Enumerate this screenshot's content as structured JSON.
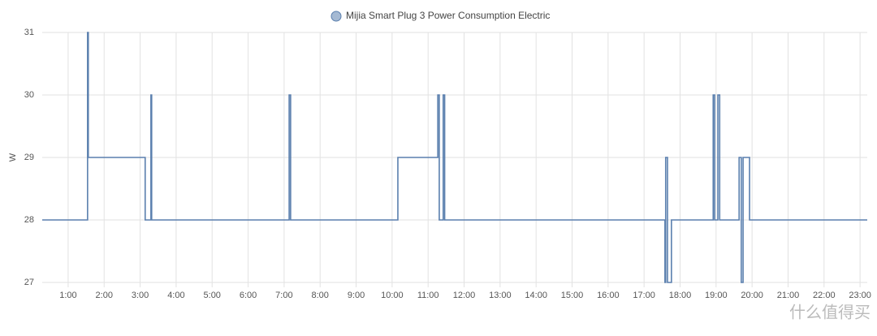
{
  "chart_data": {
    "type": "line",
    "step": "after",
    "ylabel": "W",
    "x": [
      0.28,
      1.54,
      1.56,
      3.14,
      3.3,
      3.32,
      7.14,
      7.18,
      10.16,
      11.27,
      11.31,
      11.42,
      11.46,
      17.58,
      17.6,
      17.65,
      17.76,
      18.92,
      18.96,
      19.05,
      19.1,
      19.64,
      19.7,
      19.75,
      19.93,
      23.2
    ],
    "series": [
      {
        "name": "Mijia Smart Plug 3 Power Consumption Electric",
        "color": "#5a7fae",
        "values": [
          28,
          31,
          29,
          28,
          30,
          28,
          30,
          28,
          29,
          30,
          28,
          30,
          28,
          27,
          29,
          27,
          28,
          30,
          28,
          30,
          28,
          29,
          27,
          29,
          28,
          28
        ]
      }
    ],
    "xlim": [
      0.28,
      23.2
    ],
    "xticks": [
      {
        "value": 1,
        "label": "1:00"
      },
      {
        "value": 2,
        "label": "2:00"
      },
      {
        "value": 3,
        "label": "3:00"
      },
      {
        "value": 4,
        "label": "4:00"
      },
      {
        "value": 5,
        "label": "5:00"
      },
      {
        "value": 6,
        "label": "6:00"
      },
      {
        "value": 7,
        "label": "7:00"
      },
      {
        "value": 8,
        "label": "8:00"
      },
      {
        "value": 9,
        "label": "9:00"
      },
      {
        "value": 10,
        "label": "10:00"
      },
      {
        "value": 11,
        "label": "11:00"
      },
      {
        "value": 12,
        "label": "12:00"
      },
      {
        "value": 13,
        "label": "13:00"
      },
      {
        "value": 14,
        "label": "14:00"
      },
      {
        "value": 15,
        "label": "15:00"
      },
      {
        "value": 16,
        "label": "16:00"
      },
      {
        "value": 17,
        "label": "17:00"
      },
      {
        "value": 18,
        "label": "18:00"
      },
      {
        "value": 19,
        "label": "19:00"
      },
      {
        "value": 20,
        "label": "20:00"
      },
      {
        "value": 21,
        "label": "21:00"
      },
      {
        "value": 22,
        "label": "22:00"
      },
      {
        "value": 23,
        "label": "23:00"
      }
    ],
    "ylim": [
      27,
      31
    ],
    "yticks": [
      27,
      28,
      29,
      30,
      31
    ],
    "grid": true,
    "watermark": "什么值得买"
  }
}
